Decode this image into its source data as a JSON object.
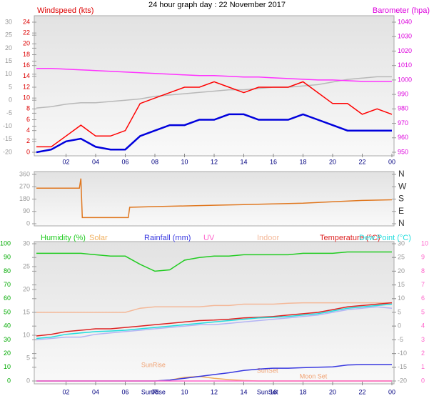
{
  "chart_data": [
    {
      "type": "line",
      "title": "24 hour graph day : 22 November 2017",
      "ylabel": "Windspeed (kts)",
      "y2label": "Barometer (hpa)",
      "x": [
        0,
        1,
        2,
        3,
        4,
        5,
        6,
        7,
        8,
        9,
        10,
        11,
        12,
        13,
        14,
        15,
        16,
        17,
        18,
        19,
        20,
        21,
        22,
        23,
        24
      ],
      "xlim": [
        0,
        24
      ],
      "xticks": [
        {
          "value": 2,
          "label": "02"
        },
        {
          "value": 4,
          "label": "04"
        },
        {
          "value": 6,
          "label": "06"
        },
        {
          "value": 8,
          "label": "08"
        },
        10,
        12,
        14,
        16,
        18,
        20,
        22,
        {
          "value": 24,
          "label": "00"
        }
      ],
      "ylim": [
        0,
        24
      ],
      "yticks": [
        0,
        2,
        4,
        6,
        8,
        10,
        12,
        14,
        16,
        18,
        20,
        22,
        24
      ],
      "y2lim": [
        950,
        1040
      ],
      "y2ticks": [
        950,
        960,
        970,
        980,
        990,
        1000,
        1010,
        1020,
        1030,
        1040
      ],
      "y3lim": [
        -20,
        30
      ],
      "y3ticks": [
        -20,
        -15,
        -10,
        -5,
        0,
        5,
        10,
        15,
        20,
        25,
        30
      ],
      "series": [
        {
          "color": "#b8b8b8",
          "axis": "y3",
          "values": [
            -3,
            -2.5,
            -1.5,
            -1,
            -1,
            -0.5,
            0,
            0.5,
            1.5,
            2,
            2.5,
            3,
            3.5,
            4,
            4,
            4.5,
            5,
            5,
            5.5,
            6,
            7,
            8,
            8.5,
            9,
            9
          ]
        },
        {
          "color": "#ff33ff",
          "axis": "y2",
          "values": [
            1008,
            1008,
            1007.5,
            1007,
            1006.5,
            1006,
            1005.5,
            1005,
            1004.5,
            1004,
            1003.5,
            1003,
            1003,
            1002.5,
            1002,
            1002,
            1001.5,
            1001,
            1000.5,
            1000,
            1000,
            999.5,
            999,
            999,
            999
          ]
        },
        {
          "color": "#ff0000",
          "values": [
            1,
            1,
            3,
            5,
            3,
            3,
            4,
            9,
            10,
            11,
            12,
            12,
            13,
            12,
            11,
            12,
            12,
            12,
            13,
            11,
            9,
            9,
            7,
            8,
            7
          ]
        },
        {
          "color": "#0000dd",
          "values": [
            0,
            0.5,
            2,
            2.5,
            1,
            0.5,
            0.5,
            3,
            4,
            5,
            5,
            6,
            6,
            7,
            7,
            6,
            6,
            6,
            7,
            6,
            5,
            4,
            4,
            4,
            4
          ]
        }
      ]
    },
    {
      "type": "line",
      "x": [
        0,
        2.9,
        3,
        3.1,
        6.2,
        6.3,
        8,
        10,
        12,
        14,
        16,
        18,
        20,
        22,
        24
      ],
      "xlim": [
        0,
        24
      ],
      "ylim": [
        0,
        360
      ],
      "yticks": [
        0,
        90,
        180,
        270,
        360
      ],
      "y2lim": [
        0,
        360
      ],
      "y2ticks": [
        {
          "value": 0,
          "label": "N"
        },
        {
          "value": 90,
          "label": "E"
        },
        {
          "value": 180,
          "label": "S"
        },
        {
          "value": 270,
          "label": "W"
        },
        {
          "value": 360,
          "label": "N"
        }
      ],
      "series": [
        {
          "color": "#e07820",
          "values": [
            260,
            260,
            330,
            45,
            45,
            120,
            125,
            130,
            135,
            140,
            145,
            150,
            160,
            170,
            175
          ]
        }
      ]
    },
    {
      "type": "line",
      "x": [
        0,
        1,
        2,
        3,
        4,
        5,
        6,
        7,
        8,
        9,
        10,
        11,
        12,
        13,
        14,
        15,
        16,
        17,
        18,
        19,
        20,
        21,
        22,
        23,
        24
      ],
      "xlim": [
        0,
        24
      ],
      "xticks": [
        {
          "value": 2,
          "label": "02"
        },
        {
          "value": 4,
          "label": "04"
        },
        {
          "value": 6,
          "label": "06"
        },
        {
          "value": 8,
          "label": "08"
        },
        10,
        12,
        14,
        16,
        18,
        20,
        22,
        {
          "value": 24,
          "label": "00"
        }
      ],
      "ylim": [
        0,
        100
      ],
      "yticks": [
        0,
        10,
        20,
        30,
        40,
        50,
        60,
        70,
        80,
        90,
        100
      ],
      "y2lim": [
        0,
        30
      ],
      "y2ticks": [
        0,
        5,
        10,
        15,
        20,
        25,
        30
      ],
      "y3lim": [
        -20,
        30
      ],
      "y3ticks": [
        -20,
        -15,
        -10,
        -5,
        0,
        5,
        10,
        15,
        20,
        25,
        30
      ],
      "y4lim": [
        0,
        10
      ],
      "y4ticks": [
        0,
        1,
        2,
        3,
        4,
        5,
        6,
        7,
        8,
        9,
        10
      ],
      "annotations": [
        {
          "text": "SunRise",
          "x": 7.9
        },
        {
          "text": "SunSet",
          "x": 15.6
        },
        {
          "text": "Moon Set",
          "x": 18.7
        }
      ],
      "xmarks": [
        {
          "text": "SunRise",
          "x": 7.9
        },
        {
          "text": "SunSet",
          "x": 15.6
        }
      ],
      "series": [
        {
          "name": "Humidity (%)",
          "color": "#22cc22",
          "axis": "y",
          "values": [
            93,
            93,
            93,
            93,
            92,
            91,
            91,
            85,
            80,
            81,
            88,
            90,
            91,
            91,
            92,
            92,
            92,
            92,
            93,
            93,
            93,
            94,
            94,
            94,
            94
          ]
        },
        {
          "name": "Solar",
          "color": "#f0b060",
          "axis": "y2",
          "values": [
            0,
            0,
            0,
            0,
            0,
            0,
            0,
            0,
            0,
            0.2,
            0.8,
            1,
            0.6,
            0.3,
            0.1,
            0,
            0,
            0,
            0,
            0,
            0,
            0,
            0,
            0,
            0
          ]
        },
        {
          "name": "Rainfall (mm)",
          "color": "#3838e0",
          "axis": "y2",
          "values": [
            0,
            0,
            0,
            0,
            0,
            0,
            0,
            0,
            0,
            0.2,
            0.6,
            1,
            1.4,
            1.8,
            2.3,
            2.6,
            2.8,
            2.8,
            2.9,
            3,
            3.1,
            3.5,
            3.6,
            3.6,
            3.6
          ]
        },
        {
          "name": "UV",
          "color": "#ff66cc",
          "axis": "y4",
          "values": [
            0,
            0,
            0,
            0,
            0,
            0,
            0,
            0,
            0,
            0,
            0,
            0,
            0,
            0,
            0,
            0,
            0,
            0,
            0,
            0,
            0,
            0,
            0,
            0,
            0
          ]
        },
        {
          "color": "#b4b4f4",
          "axis": "y3",
          "values": [
            -5,
            -4.5,
            -4,
            -4,
            -3,
            -2.5,
            -2,
            -1.5,
            -1,
            -0.5,
            0,
            0.5,
            0.5,
            1,
            1.5,
            2,
            2.5,
            3,
            3.5,
            4,
            5,
            6,
            6.5,
            7,
            6.5
          ]
        },
        {
          "name": "Indoor",
          "color": "#f4b898",
          "axis": "y3",
          "values": [
            5,
            5,
            5,
            5,
            5,
            5,
            5,
            6.5,
            7,
            7,
            7,
            7,
            7.5,
            7.5,
            8,
            8,
            8,
            8.3,
            8.5,
            8.5,
            8.5,
            8.5,
            8.5,
            8.5,
            8.5
          ]
        },
        {
          "name": "Temperature (°C)",
          "color": "#dd2222",
          "axis": "y3",
          "values": [
            -3.6,
            -3,
            -2,
            -1.5,
            -1,
            -1,
            -0.5,
            0,
            0.5,
            1,
            1.5,
            2,
            2.2,
            2.5,
            3,
            3.2,
            3.5,
            4,
            4.5,
            5,
            6,
            7,
            7.5,
            8,
            8.5
          ]
        },
        {
          "name": "Dew Point (°C)",
          "color": "#22dddd",
          "axis": "y3",
          "values": [
            -4.5,
            -4,
            -3,
            -2.5,
            -2,
            -1.8,
            -1.5,
            -1,
            -0.5,
            0,
            0.5,
            1,
            1.5,
            2,
            2.5,
            3,
            3.2,
            3.5,
            4,
            4.5,
            5.5,
            6.5,
            7,
            7.5,
            8
          ]
        }
      ]
    }
  ]
}
